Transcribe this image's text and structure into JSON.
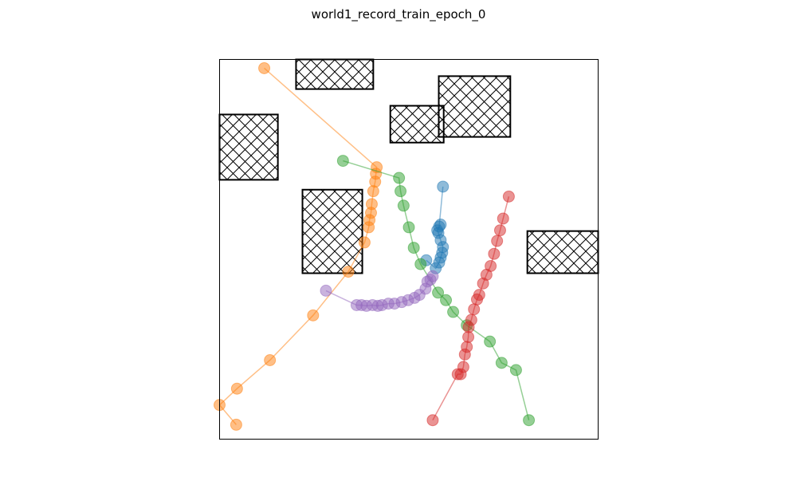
{
  "chart_data": {
    "type": "scatter",
    "title": "world1_record_train_epoch_0",
    "xlabel": "",
    "ylabel": "",
    "xlim": [
      0,
      100
    ],
    "ylim": [
      0,
      100
    ],
    "grid": false,
    "axis_ticks": false,
    "legend": "none",
    "obstacles": [
      {
        "x0": 20.2,
        "x1": 40.6,
        "y0": 92.2,
        "y1": 100
      },
      {
        "x0": 0,
        "x1": 15.4,
        "y0": 68.3,
        "y1": 85.5
      },
      {
        "x0": 45.1,
        "x1": 59.2,
        "y0": 78.1,
        "y1": 87.8
      },
      {
        "x0": 57.9,
        "x1": 76.8,
        "y0": 79.6,
        "y1": 95.6
      },
      {
        "x0": 21.9,
        "x1": 37.7,
        "y0": 43.7,
        "y1": 65.7
      },
      {
        "x0": 81.3,
        "x1": 100,
        "y0": 43.7,
        "y1": 54.8
      }
    ],
    "series": [
      {
        "color": "#1f77b4",
        "points": [
          [
            59.0,
            66.5
          ],
          [
            58.0,
            56.0
          ],
          [
            58.4,
            56.5
          ],
          [
            57.5,
            55.0
          ],
          [
            57.8,
            54.3
          ],
          [
            58.4,
            52.4
          ],
          [
            59.0,
            50.6
          ],
          [
            58.8,
            49.1
          ],
          [
            58.4,
            47.8
          ],
          [
            58.0,
            46.5
          ],
          [
            57.1,
            45.0
          ],
          [
            54.6,
            47.1
          ]
        ]
      },
      {
        "color": "#ff7f0e",
        "points": [
          [
            11.8,
            97.7
          ],
          [
            41.5,
            71.6
          ],
          [
            41.3,
            69.9
          ],
          [
            41.1,
            67.8
          ],
          [
            40.6,
            65.3
          ],
          [
            40.2,
            61.9
          ],
          [
            40.0,
            59.6
          ],
          [
            39.6,
            57.7
          ],
          [
            39.4,
            55.8
          ],
          [
            38.3,
            51.8
          ],
          [
            34.0,
            44.1
          ],
          [
            24.7,
            32.6
          ],
          [
            13.3,
            20.8
          ],
          [
            4.6,
            13.3
          ],
          [
            0.0,
            9.0
          ],
          [
            4.4,
            3.8
          ]
        ]
      },
      {
        "color": "#2ca02c",
        "points": [
          [
            32.6,
            73.3
          ],
          [
            47.4,
            68.8
          ],
          [
            47.8,
            65.3
          ],
          [
            48.6,
            61.5
          ],
          [
            50.0,
            55.8
          ],
          [
            51.3,
            50.4
          ],
          [
            53.1,
            46.1
          ],
          [
            57.7,
            38.6
          ],
          [
            59.8,
            36.6
          ],
          [
            61.7,
            33.5
          ],
          [
            65.3,
            30.0
          ],
          [
            71.4,
            25.7
          ],
          [
            74.5,
            20.1
          ],
          [
            78.3,
            18.2
          ],
          [
            81.7,
            5.0
          ]
        ]
      },
      {
        "color": "#d62728",
        "points": [
          [
            76.4,
            63.9
          ],
          [
            74.9,
            58.1
          ],
          [
            74.1,
            55.0
          ],
          [
            73.3,
            52.2
          ],
          [
            72.5,
            48.8
          ],
          [
            71.6,
            45.6
          ],
          [
            70.5,
            43.3
          ],
          [
            69.6,
            41.0
          ],
          [
            68.6,
            38.0
          ],
          [
            68.0,
            36.8
          ],
          [
            67.2,
            34.2
          ],
          [
            66.5,
            31.4
          ],
          [
            65.8,
            29.5
          ],
          [
            65.7,
            26.9
          ],
          [
            65.3,
            24.3
          ],
          [
            64.8,
            22.3
          ],
          [
            64.4,
            19.0
          ],
          [
            63.7,
            17.1
          ],
          [
            62.9,
            17.1
          ],
          [
            56.3,
            5.0
          ]
        ]
      },
      {
        "color": "#9467bd",
        "points": [
          [
            28.1,
            39.1
          ],
          [
            36.2,
            35.3
          ],
          [
            37.5,
            35.3
          ],
          [
            38.8,
            35.1
          ],
          [
            40.4,
            35.3
          ],
          [
            41.8,
            35.1
          ],
          [
            42.9,
            35.3
          ],
          [
            44.6,
            35.7
          ],
          [
            46.2,
            35.7
          ],
          [
            48.1,
            36.1
          ],
          [
            49.8,
            36.6
          ],
          [
            51.5,
            37.2
          ],
          [
            52.8,
            38.0
          ],
          [
            54.4,
            39.6
          ],
          [
            54.9,
            41.5
          ],
          [
            55.7,
            42.0
          ],
          [
            56.3,
            42.9
          ]
        ]
      }
    ]
  }
}
